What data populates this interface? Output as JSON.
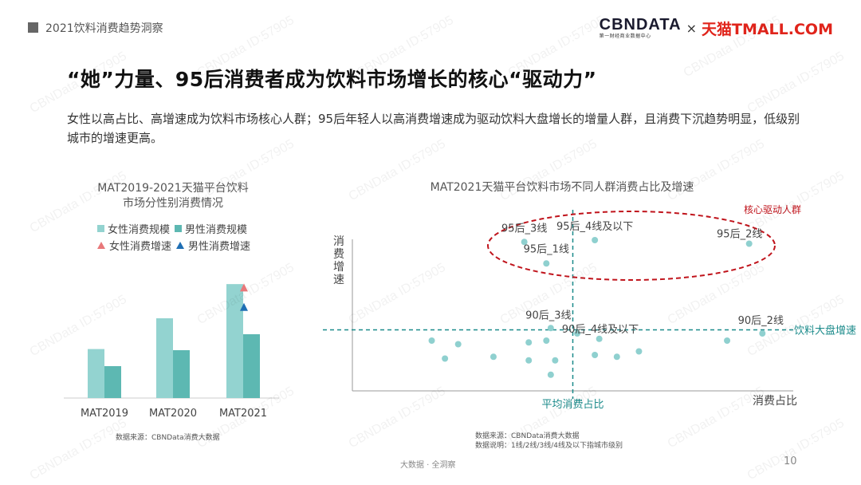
{
  "header": {
    "section_title": "2021饮料消费趋势洞察"
  },
  "logo": {
    "cbn": "CBNDATA",
    "cbn_sub": "第一财经商业数据中心",
    "times": "×",
    "tmall": "天猫TMALL.COM"
  },
  "page_title": "“她”力量、95后消费者成为饮料市场增长的核心“驱动力”",
  "description": "女性以高占比、高增速成为饮料市场核心人群；95后年轻人以高消费增速成为驱动饮料大盘增长的增量人群，且消费下沉趋势明显，低级别城市的增速更高。",
  "colors": {
    "female": "#93d3d0",
    "male": "#5db8b2",
    "female_growth": "#e8787a",
    "male_growth": "#1f6fb4",
    "teal_line": "#1a8a8a",
    "circle_red": "#c0141c",
    "point": "#8fd0cf"
  },
  "chart_data": [
    {
      "type": "bar",
      "title_line1": "MAT2019-2021天猫平台饮料",
      "title_line2": "市场分性别消费情况",
      "categories": [
        "MAT2019",
        "MAT2020",
        "MAT2021"
      ],
      "series": [
        {
          "name": "女性消费规模",
          "values": [
            0.43,
            0.7,
            1.0
          ]
        },
        {
          "name": "男性消费规模",
          "values": [
            0.28,
            0.42,
            0.56
          ]
        }
      ],
      "growth_markers": [
        {
          "name": "女性消费增速",
          "category": "MAT2021",
          "relative_value": 0.97
        },
        {
          "name": "男性消费增速",
          "category": "MAT2021",
          "relative_value": 0.8
        }
      ],
      "ylim": [
        0,
        1.05
      ],
      "source": "数据来源：CBNData消费大数据"
    },
    {
      "type": "scatter",
      "title": "MAT2021天猫平台饮料市场不同人群消费占比及增速",
      "xlabel": "消费占比",
      "ylabel": "消费增速",
      "xlim": [
        0,
        1
      ],
      "ylim": [
        0,
        1
      ],
      "avg_share_label": "平均消费占比",
      "avg_share_x": 0.5,
      "market_growth_label": "饮料大盘增速",
      "market_growth_y": 0.34,
      "highlight_label": "核心驱动人群",
      "labeled_points": [
        {
          "label": "95后_3线",
          "x": 0.39,
          "y": 0.83
        },
        {
          "label": "95后_4线及以下",
          "x": 0.55,
          "y": 0.84
        },
        {
          "label": "95后_1线",
          "x": 0.44,
          "y": 0.71
        },
        {
          "label": "95后_2线",
          "x": 0.9,
          "y": 0.82
        },
        {
          "label": "90后_3线",
          "x": 0.45,
          "y": 0.35
        },
        {
          "label": "90后_4线及以下",
          "x": 0.51,
          "y": 0.32
        },
        {
          "label": "90后_2线",
          "x": 0.93,
          "y": 0.32
        }
      ],
      "other_points": [
        {
          "x": 0.18,
          "y": 0.28
        },
        {
          "x": 0.21,
          "y": 0.18
        },
        {
          "x": 0.24,
          "y": 0.26
        },
        {
          "x": 0.32,
          "y": 0.19
        },
        {
          "x": 0.4,
          "y": 0.17
        },
        {
          "x": 0.4,
          "y": 0.27
        },
        {
          "x": 0.44,
          "y": 0.28
        },
        {
          "x": 0.46,
          "y": 0.17
        },
        {
          "x": 0.45,
          "y": 0.09
        },
        {
          "x": 0.55,
          "y": 0.2
        },
        {
          "x": 0.56,
          "y": 0.29
        },
        {
          "x": 0.6,
          "y": 0.19
        },
        {
          "x": 0.65,
          "y": 0.22
        },
        {
          "x": 0.85,
          "y": 0.28
        }
      ],
      "source_line1": "数据来源：CBNData消费大数据",
      "source_line2": "数据说明：1线/2线/3线/4线及以下指城市级别"
    }
  ],
  "footer": {
    "text": "大数据 · 全洞察",
    "page": "10"
  },
  "watermark": "CBNData ID:57905"
}
